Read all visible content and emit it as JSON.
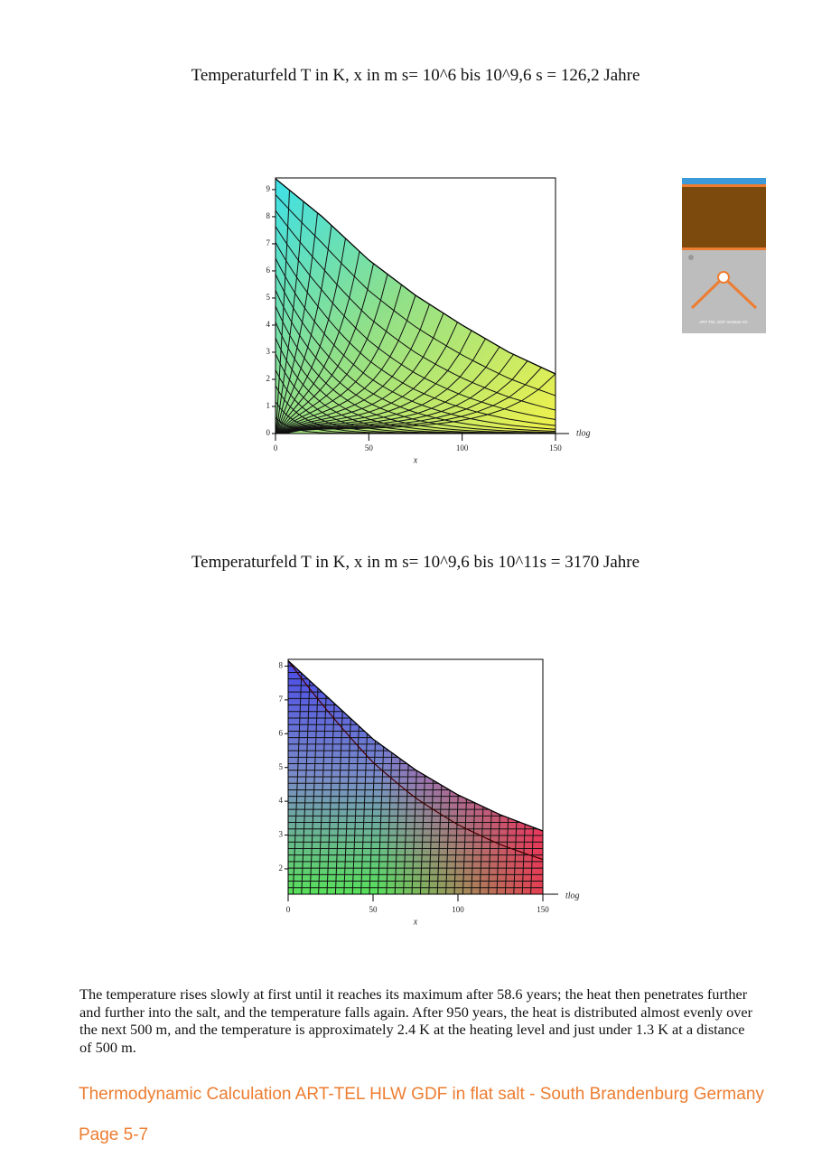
{
  "figures": [
    {
      "title": "Temperaturfeld T in K, x in m s= 10^6 bis 10^9,6 s = 126,2 Jahre",
      "xlabel": "x",
      "depth_label": "tlog",
      "xlim": [
        0,
        150
      ],
      "ylim": [
        0,
        9.43
      ],
      "xticks": [
        0,
        50,
        100,
        150
      ],
      "yticks": [
        0,
        1,
        2,
        3,
        4,
        5,
        6,
        7,
        8,
        9
      ],
      "front_curve": {
        "x": [
          0,
          25,
          50,
          75,
          100,
          125,
          150
        ],
        "values": [
          9.4,
          8.0,
          6.4,
          5.1,
          4.0,
          3.0,
          2.2
        ]
      }
    },
    {
      "title": "Temperaturfeld T in K, x in m s= 10^9,6 bis 10^11s = 3170 Jahre",
      "xlabel": "x",
      "depth_label": "tlog",
      "xlim": [
        0,
        150
      ],
      "ylim": [
        1.25,
        8.2
      ],
      "xticks": [
        0,
        50,
        100,
        150
      ],
      "yticks": [
        2,
        3,
        4,
        5,
        6,
        7,
        8
      ],
      "front_curve": {
        "x": [
          0,
          25,
          50,
          75,
          100,
          125,
          150
        ],
        "values": [
          8.16,
          7.0,
          5.84,
          4.93,
          4.19,
          3.6,
          3.12
        ]
      }
    }
  ],
  "paragraph": "The temperature rises slowly at first until it reaches its maximum after 58.6 years; the heat then penetrates further and further into the salt, and the temperature falls again. After 950 years, the heat is distributed almost evenly over the next 500 m, and the temperature is approximately 2.4 K at the heating level and just under 1.3 K at a distance of 500 m.",
  "footer": {
    "title": "Thermodynamic Calculation ART-TEL HLW  GDF in flat salt - South Brandenburg Germany",
    "page": "Page 5-7"
  },
  "logo": {
    "caption": "ART-TEL GDF Institute AG"
  }
}
